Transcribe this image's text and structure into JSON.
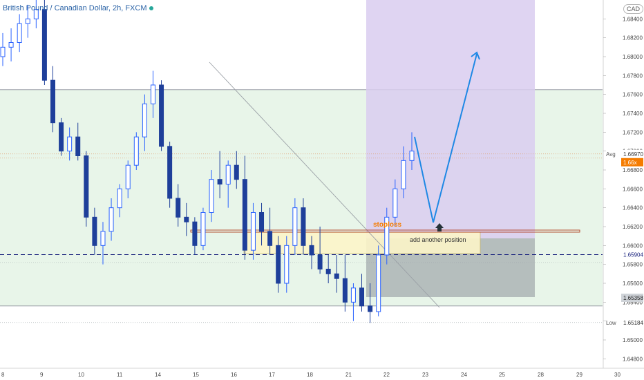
{
  "header": {
    "title": "British Pound / Canadian Dollar, 2h, FXCM",
    "currency_chip": "CAD"
  },
  "annotations": {
    "stoploss": "stoploss",
    "add_position": "add another position"
  },
  "price_labels": {
    "avg_tag": "Avg",
    "avg_value": "1.66970",
    "current_value": "1.66x",
    "dashed_value": "1.65904",
    "box_bottom_value": "1.65358",
    "low_tag": "Low",
    "low_value": "1.65184"
  },
  "colors": {
    "up": "#2962ff",
    "down": "#1e3f9a",
    "green_zone": "#e8f5e9",
    "purple_zone": "#d9ccf0",
    "gray_zone": "#8a8f99",
    "yellow_box": "#fdf5c9",
    "arrow": "#1e88e5",
    "red_line": "#b04020",
    "stoploss_text": "#f57c00",
    "current_tag": "#f57c00",
    "dashed_line": "#1a237e"
  },
  "chart_data": {
    "type": "candlestick",
    "title": "British Pound / Canadian Dollar, 2h, FXCM",
    "y_axis": {
      "ticks": [
        "1.68400",
        "1.68200",
        "1.68000",
        "1.67800",
        "1.67600",
        "1.67400",
        "1.67200",
        "1.67000",
        "1.66800",
        "1.66600",
        "1.66400",
        "1.66200",
        "1.66000",
        "1.65800",
        "1.65600",
        "1.65400",
        "1.65200",
        "1.65000",
        "1.64800"
      ],
      "range": [
        1.647,
        1.686
      ]
    },
    "x_axis": {
      "ticks": [
        "8",
        "9",
        "10",
        "11",
        "14",
        "15",
        "16",
        "17",
        "18",
        "21",
        "22",
        "23",
        "24",
        "25",
        "28",
        "29",
        "30"
      ]
    },
    "candles_ohlc": [
      [
        1.68,
        1.6825,
        1.679,
        1.681
      ],
      [
        1.681,
        1.683,
        1.6795,
        1.6815
      ],
      [
        1.6815,
        1.6845,
        1.6805,
        1.6835
      ],
      [
        1.6835,
        1.6855,
        1.682,
        1.684
      ],
      [
        1.684,
        1.686,
        1.683,
        1.685
      ],
      [
        1.685,
        1.686,
        1.677,
        1.6775
      ],
      [
        1.6775,
        1.679,
        1.672,
        1.673
      ],
      [
        1.673,
        1.6735,
        1.6695,
        1.67
      ],
      [
        1.67,
        1.6725,
        1.669,
        1.6715
      ],
      [
        1.6715,
        1.673,
        1.669,
        1.6695
      ],
      [
        1.6695,
        1.67,
        1.662,
        1.663
      ],
      [
        1.663,
        1.664,
        1.659,
        1.66
      ],
      [
        1.66,
        1.6625,
        1.658,
        1.6615
      ],
      [
        1.6615,
        1.665,
        1.6605,
        1.664
      ],
      [
        1.664,
        1.6665,
        1.663,
        1.666
      ],
      [
        1.666,
        1.669,
        1.665,
        1.6685
      ],
      [
        1.6685,
        1.672,
        1.668,
        1.6715
      ],
      [
        1.6715,
        1.676,
        1.67,
        1.675
      ],
      [
        1.675,
        1.6785,
        1.6735,
        1.677
      ],
      [
        1.677,
        1.6775,
        1.67,
        1.6705
      ],
      [
        1.6705,
        1.671,
        1.664,
        1.665
      ],
      [
        1.665,
        1.6665,
        1.662,
        1.663
      ],
      [
        1.663,
        1.6645,
        1.661,
        1.6625
      ],
      [
        1.6625,
        1.663,
        1.659,
        1.66
      ],
      [
        1.66,
        1.664,
        1.6595,
        1.6635
      ],
      [
        1.6635,
        1.668,
        1.6625,
        1.667
      ],
      [
        1.667,
        1.67,
        1.665,
        1.6665
      ],
      [
        1.6665,
        1.669,
        1.664,
        1.6685
      ],
      [
        1.6685,
        1.67,
        1.666,
        1.667
      ],
      [
        1.667,
        1.6695,
        1.6585,
        1.6595
      ],
      [
        1.6595,
        1.6645,
        1.6585,
        1.6635
      ],
      [
        1.6635,
        1.6645,
        1.66,
        1.6615
      ],
      [
        1.6615,
        1.664,
        1.659,
        1.66
      ],
      [
        1.66,
        1.661,
        1.655,
        1.656
      ],
      [
        1.656,
        1.661,
        1.655,
        1.66
      ],
      [
        1.66,
        1.665,
        1.659,
        1.664
      ],
      [
        1.664,
        1.665,
        1.659,
        1.66
      ],
      [
        1.66,
        1.661,
        1.6575,
        1.659
      ],
      [
        1.659,
        1.662,
        1.657,
        1.6575
      ],
      [
        1.6575,
        1.659,
        1.656,
        1.657
      ],
      [
        1.657,
        1.659,
        1.655,
        1.6565
      ],
      [
        1.6565,
        1.659,
        1.653,
        1.654
      ],
      [
        1.654,
        1.656,
        1.652,
        1.6555
      ],
      [
        1.6555,
        1.657,
        1.653,
        1.6536
      ],
      [
        1.6536,
        1.656,
        1.6518,
        1.653
      ],
      [
        1.653,
        1.66,
        1.6525,
        1.659
      ],
      [
        1.659,
        1.664,
        1.658,
        1.663
      ],
      [
        1.663,
        1.667,
        1.662,
        1.666
      ],
      [
        1.666,
        1.6705,
        1.665,
        1.669
      ],
      [
        1.669,
        1.672,
        1.668,
        1.67
      ]
    ],
    "levels": {
      "green_zone": [
        1.6536,
        1.6765
      ],
      "dashed_support": 1.65904,
      "avg": 1.6697,
      "low": 1.65184
    }
  }
}
